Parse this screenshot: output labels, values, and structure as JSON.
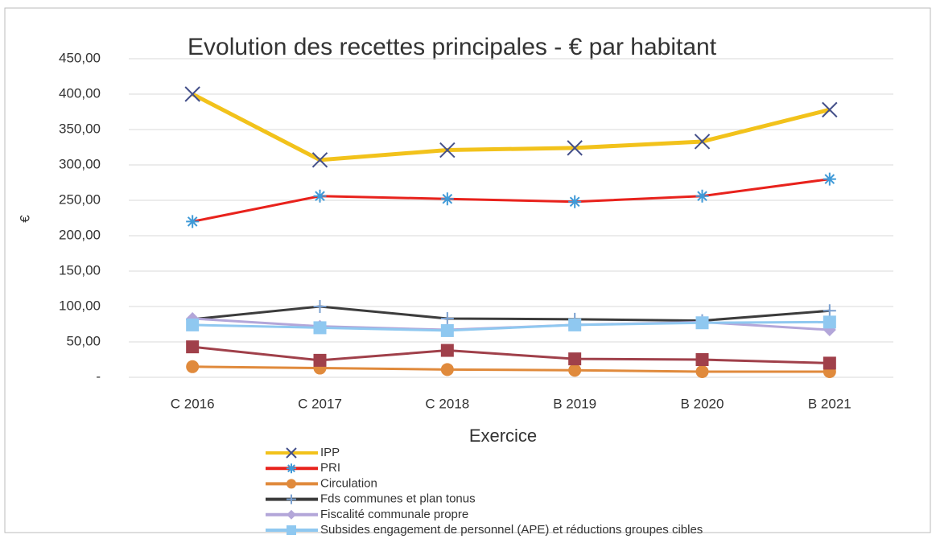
{
  "chart_data": {
    "type": "line",
    "title": "Evolution des recettes principales - € par habitant",
    "x_label": "Exercice",
    "y_label": "€",
    "categories": [
      "C 2016",
      "C 2017",
      "C 2018",
      "B 2019",
      "B 2020",
      "B 2021"
    ],
    "ylim": [
      0,
      450
    ],
    "yticks": [
      {
        "value": 0,
        "label": "-"
      },
      {
        "value": 50,
        "label": "50,00"
      },
      {
        "value": 100,
        "label": "100,00"
      },
      {
        "value": 150,
        "label": "150,00"
      },
      {
        "value": 200,
        "label": "200,00"
      },
      {
        "value": 250,
        "label": "250,00"
      },
      {
        "value": 300,
        "label": "300,00"
      },
      {
        "value": 350,
        "label": "350,00"
      },
      {
        "value": 400,
        "label": "400,00"
      },
      {
        "value": 450,
        "label": "450,00"
      }
    ],
    "grid": true,
    "series": [
      {
        "name": "IPP",
        "color": "#f2c21b",
        "marker": "x",
        "values": [
          400,
          307,
          321,
          324,
          333,
          378
        ]
      },
      {
        "name": "PRI",
        "color": "#e8221c",
        "marker": "star",
        "values": [
          220,
          256,
          252,
          248,
          256,
          280
        ]
      },
      {
        "name": "Circulation",
        "color": "#e08a3c",
        "marker": "circle",
        "values": [
          15,
          13,
          11,
          10,
          8,
          8
        ]
      },
      {
        "name": "Fds communes et plan tonus",
        "color": "#3c3c3c",
        "marker": "plus",
        "values": [
          82,
          100,
          83,
          82,
          80,
          94
        ]
      },
      {
        "name": "Fiscalité communale propre",
        "color": "#b3a6d9",
        "marker": "diamond",
        "values": [
          83,
          72,
          67,
          74,
          78,
          67
        ]
      },
      {
        "name": "Subsides engagement de personnel (APE) et réductions groupes cibles",
        "color": "#8fc8f0",
        "marker": "square",
        "values": [
          74,
          70,
          66,
          74,
          77,
          78
        ]
      },
      {
        "color": "#a0404a",
        "marker": "square",
        "values": [
          43,
          24,
          38,
          26,
          25,
          20
        ]
      }
    ]
  }
}
